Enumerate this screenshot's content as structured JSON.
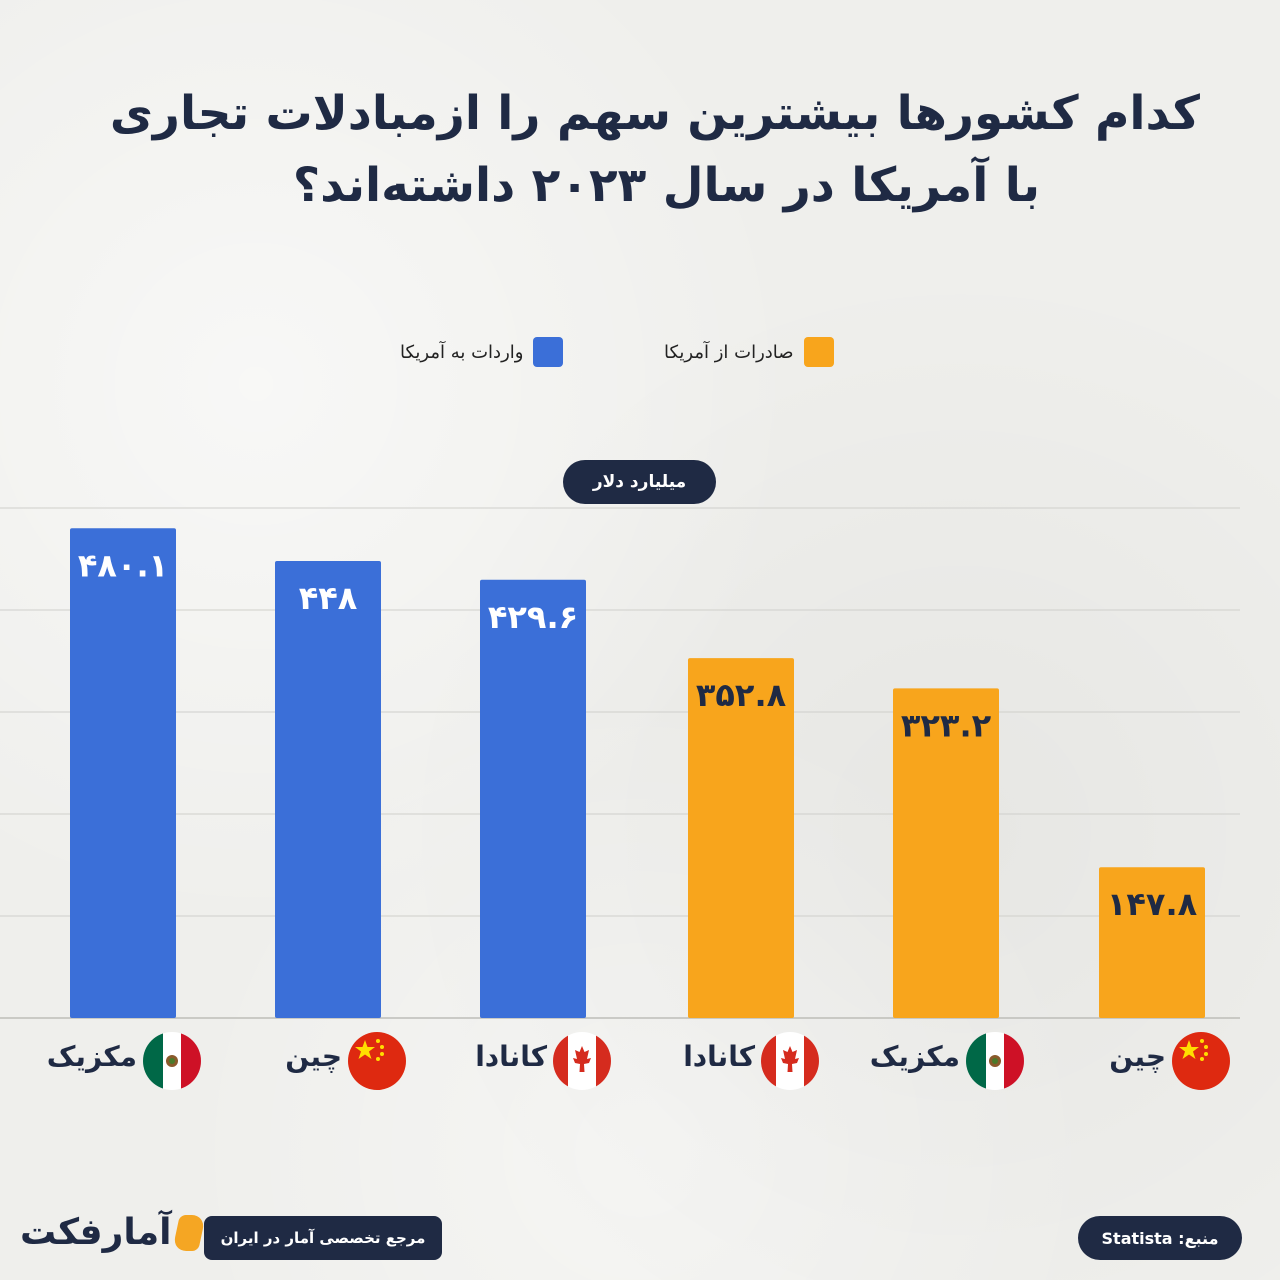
{
  "title_line1": "کدام کشورها بیشترین سهم را ازمبادلات تجاری",
  "title_line2": "با آمریکا در سال ۲۰۲۳ داشته‌اند؟",
  "unit_label": "میلیارد دلار",
  "brand": {
    "logo": "آمارفکت",
    "tagline": "مرجع تخصصی آمار در ایران"
  },
  "source_label": "منبع: Statista",
  "colors": {
    "imports": "#3b6fd8",
    "exports": "#f8a51c",
    "navy": "#1f2a44"
  },
  "chart_data": {
    "type": "bar",
    "ylim": [
      0,
      500
    ],
    "grid": true,
    "legend_placement": "top",
    "series": [
      {
        "name": "واردات به آمریکا",
        "color": "#3b6fd8",
        "categories": [
          "مکزیک",
          "چین",
          "کانادا"
        ],
        "flags": [
          "mexico-flag-icon",
          "china-flag-icon",
          "canada-flag-icon"
        ],
        "values": [
          480.1,
          448,
          429.6
        ],
        "labels": [
          "۴۸۰.۱",
          "۴۴۸",
          "۴۲۹.۶"
        ]
      },
      {
        "name": "صادرات از آمریکا",
        "color": "#f8a51c",
        "categories": [
          "کانادا",
          "مکزیک",
          "چین"
        ],
        "flags": [
          "canada-flag-icon",
          "mexico-flag-icon",
          "china-flag-icon"
        ],
        "values": [
          352.8,
          323.2,
          147.8
        ],
        "labels": [
          "۳۵۲.۸",
          "۳۲۳.۲",
          "۱۴۷.۸"
        ]
      }
    ]
  }
}
